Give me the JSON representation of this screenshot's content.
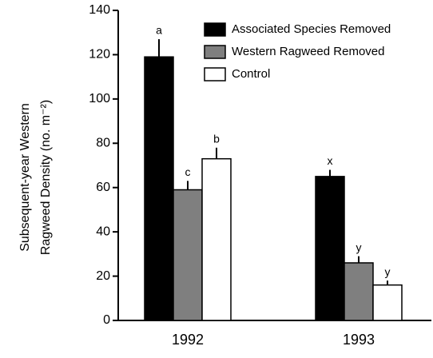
{
  "chart_data": {
    "type": "bar",
    "ylabel": [
      "Subsequent-year Western",
      "Ragweed Density (no. m⁻²)"
    ],
    "categories": [
      "1992",
      "1993"
    ],
    "series": [
      {
        "name": "Associated Species Removed",
        "color": "#000000",
        "values": [
          119,
          65
        ],
        "errors": [
          8,
          3
        ],
        "letters": [
          "a",
          "x"
        ]
      },
      {
        "name": "Western Ragweed Removed",
        "color": "#7f7f7f",
        "values": [
          59,
          26
        ],
        "errors": [
          4,
          3
        ],
        "letters": [
          "c",
          "y"
        ]
      },
      {
        "name": "Control",
        "color": "#ffffff",
        "values": [
          73,
          16
        ],
        "errors": [
          5,
          2
        ],
        "letters": [
          "b",
          "y"
        ]
      }
    ],
    "ylim": [
      0,
      140
    ],
    "yticks": [
      0,
      20,
      40,
      60,
      80,
      100,
      120,
      140
    ],
    "grid": false,
    "legend": "upper right"
  }
}
